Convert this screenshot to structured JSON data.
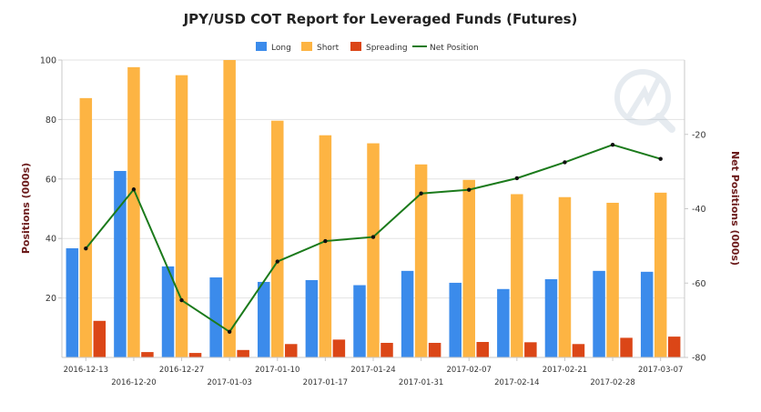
{
  "chart_data": {
    "type": "bar",
    "title": "JPY/USD COT Report for Leveraged Funds (Futures)",
    "ylabel": "Positions (000s)",
    "y2label": "Net Positions (000s)",
    "ylim": [
      0,
      100
    ],
    "y2lim": [
      -80,
      0
    ],
    "yticks": [
      20,
      40,
      60,
      80,
      100
    ],
    "y2ticks": [
      -20,
      -40,
      -60,
      -80
    ],
    "legend_position": "top-center",
    "grid": true,
    "categories": [
      "2016-12-13",
      "2016-12-20",
      "2016-12-27",
      "2017-01-03",
      "2017-01-10",
      "2017-01-17",
      "2017-01-24",
      "2017-01-31",
      "2017-02-07",
      "2017-02-14",
      "2017-02-21",
      "2017-02-28",
      "2017-03-07"
    ],
    "series": [
      {
        "name": "Long",
        "type": "bar",
        "color": "#3b8beb",
        "axis": "left",
        "values": [
          36.7,
          62.7,
          30.6,
          26.9,
          25.4,
          26.0,
          24.3,
          29.1,
          25.1,
          23.0,
          26.3,
          29.1,
          28.8
        ]
      },
      {
        "name": "Short",
        "type": "bar",
        "color": "#fdb443",
        "axis": "left",
        "values": [
          87.2,
          97.6,
          94.9,
          100.0,
          79.6,
          74.7,
          72.0,
          64.9,
          59.7,
          54.9,
          53.9,
          52.0,
          55.4
        ]
      },
      {
        "name": "Spreading",
        "type": "bar",
        "color": "#db4617",
        "axis": "left",
        "values": [
          12.3,
          1.8,
          1.5,
          2.5,
          4.5,
          6.0,
          4.9,
          4.9,
          5.2,
          5.1,
          4.5,
          6.6,
          7.0
        ]
      },
      {
        "name": "Net Position",
        "type": "line",
        "color": "#1b7a1b",
        "axis": "right",
        "values": [
          -50.7,
          -34.8,
          -64.6,
          -73.1,
          -54.2,
          -48.7,
          -47.6,
          -35.9,
          -34.9,
          -31.8,
          -27.5,
          -22.8,
          -26.6
        ]
      }
    ]
  }
}
